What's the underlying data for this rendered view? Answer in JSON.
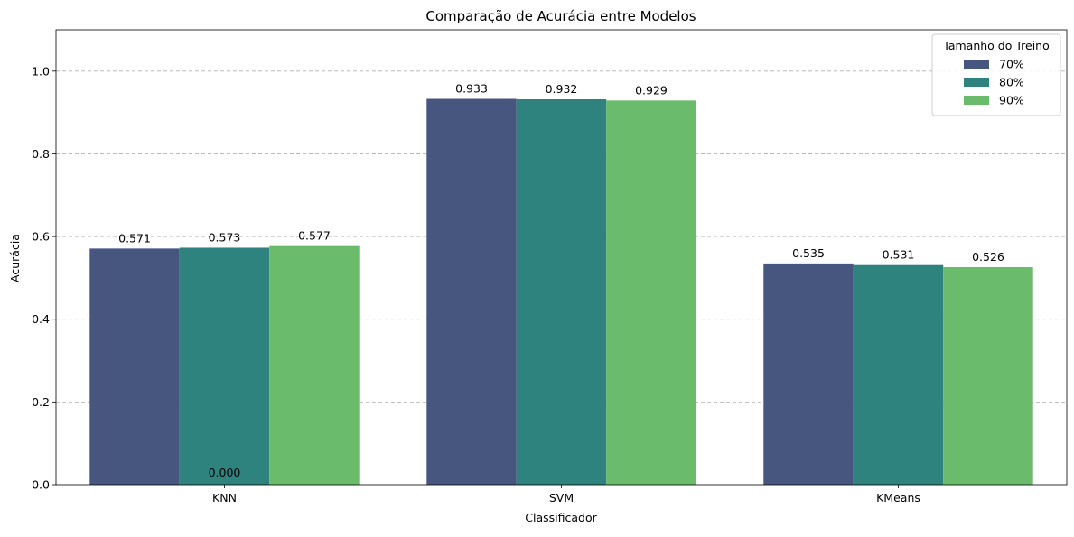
{
  "chart_data": {
    "type": "bar",
    "title": "Comparação de Acurácia entre Modelos",
    "xlabel": "Classificador",
    "ylabel": "Acurácia",
    "categories": [
      "KNN",
      "SVM",
      "KMeans"
    ],
    "series": [
      {
        "name": "70%",
        "color": "#46567f",
        "values": [
          0.571,
          0.933,
          0.535
        ],
        "labels": [
          "0.571",
          "0.933",
          "0.535"
        ]
      },
      {
        "name": "80%",
        "color": "#2e837e",
        "values": [
          0.573,
          0.932,
          0.531
        ],
        "labels": [
          "0.573",
          "0.932",
          "0.531"
        ]
      },
      {
        "name": "90%",
        "color": "#6abc6c",
        "values": [
          0.577,
          0.929,
          0.526
        ],
        "labels": [
          "0.577",
          "0.929",
          "0.526"
        ]
      }
    ],
    "extra_annotations": [
      {
        "category": "KNN",
        "value": 0.0,
        "text": "0.000"
      }
    ],
    "ylim": [
      0,
      1.1
    ],
    "yticks": [
      0.0,
      0.2,
      0.4,
      0.6,
      0.8,
      1.0
    ],
    "ytick_labels": [
      "0.0",
      "0.2",
      "0.4",
      "0.6",
      "0.8",
      "1.0"
    ],
    "grid": "y-dashed",
    "legend": {
      "title": "Tamanho do Treino",
      "position": "top-right"
    }
  }
}
